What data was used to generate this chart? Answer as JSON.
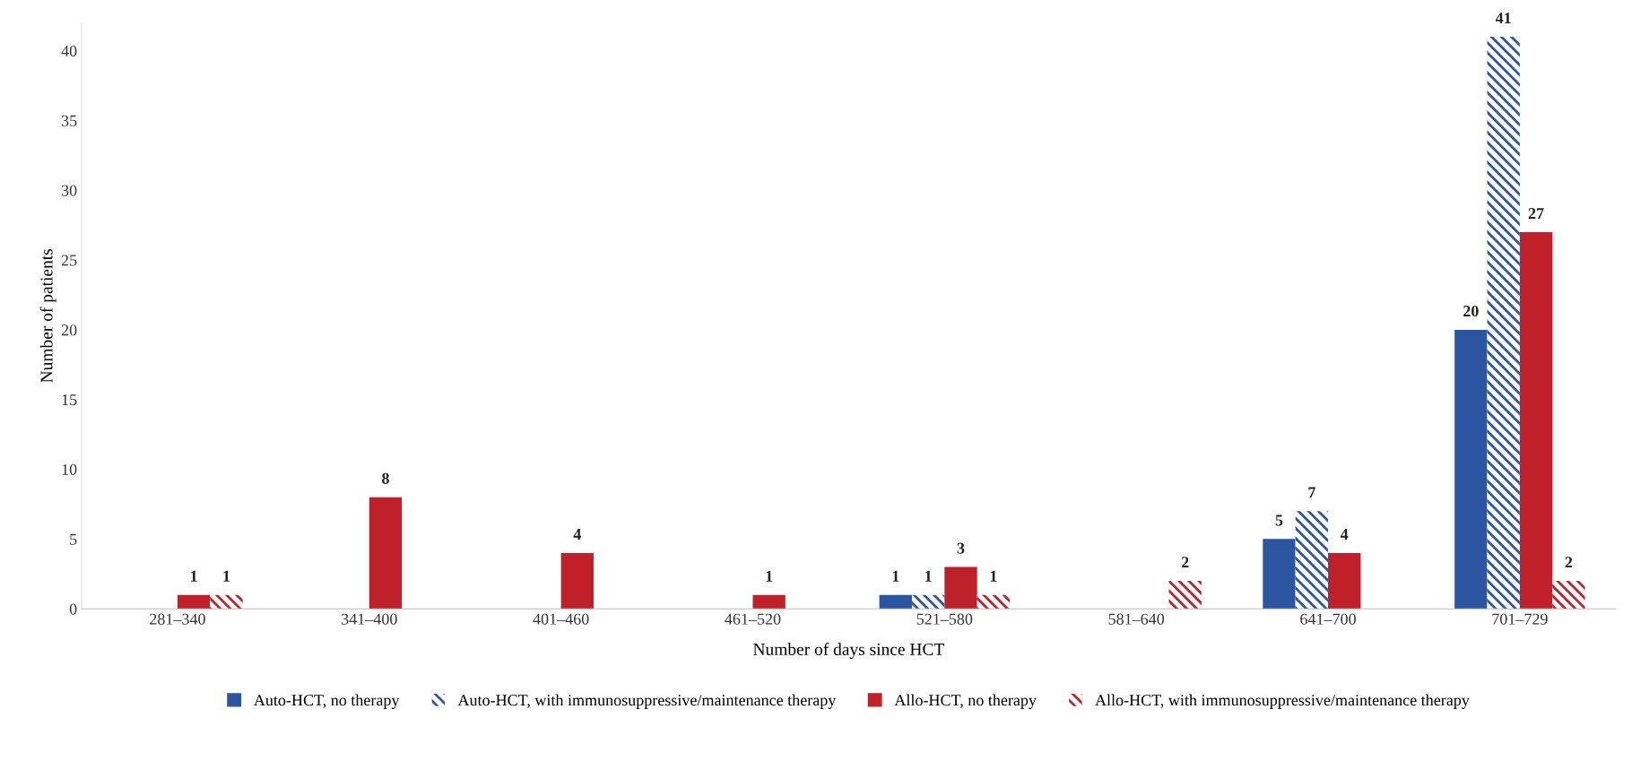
{
  "chart_data": {
    "type": "bar",
    "xlabel": "Number of days since HCT",
    "ylabel": "Number of patients",
    "categories": [
      "281–340",
      "341–400",
      "401–460",
      "461–520",
      "521–580",
      "581–640",
      "641–700",
      "701–729"
    ],
    "series": [
      {
        "name": "Auto-HCT, no therapy",
        "color": "#2b55a1",
        "values": [
          0,
          0,
          0,
          0,
          1,
          0,
          5,
          20
        ],
        "value_labels": [
          null,
          null,
          null,
          null,
          "1",
          null,
          "5",
          "20"
        ]
      },
      {
        "name": "Auto-HCT, with immunosuppressive/maintenance therapy",
        "color": "#2b55a1",
        "values": [
          0,
          0,
          0,
          0,
          1,
          0,
          7,
          41
        ],
        "value_labels": [
          null,
          null,
          null,
          null,
          "1",
          null,
          "7",
          "41"
        ]
      },
      {
        "name": "Allo-HCT, no therapy",
        "color": "#c0202a",
        "values": [
          1,
          8,
          4,
          1,
          3,
          0,
          4,
          27
        ],
        "value_labels": [
          "1",
          "8",
          "4",
          "1",
          "3",
          null,
          "4",
          "27"
        ]
      },
      {
        "name": "Allo-HCT, with immunosuppressive/maintenance therapy",
        "color": "#c0202a",
        "values": [
          1,
          0,
          0,
          0,
          1,
          2,
          0,
          2
        ],
        "value_labels": [
          "1",
          null,
          null,
          null,
          "1",
          "2",
          null,
          "2"
        ]
      }
    ],
    "ylim": [
      0,
      42
    ],
    "yticks": [
      0,
      5,
      10,
      15,
      20,
      25,
      30,
      35,
      40
    ],
    "grid": false,
    "legend": "bottom"
  }
}
